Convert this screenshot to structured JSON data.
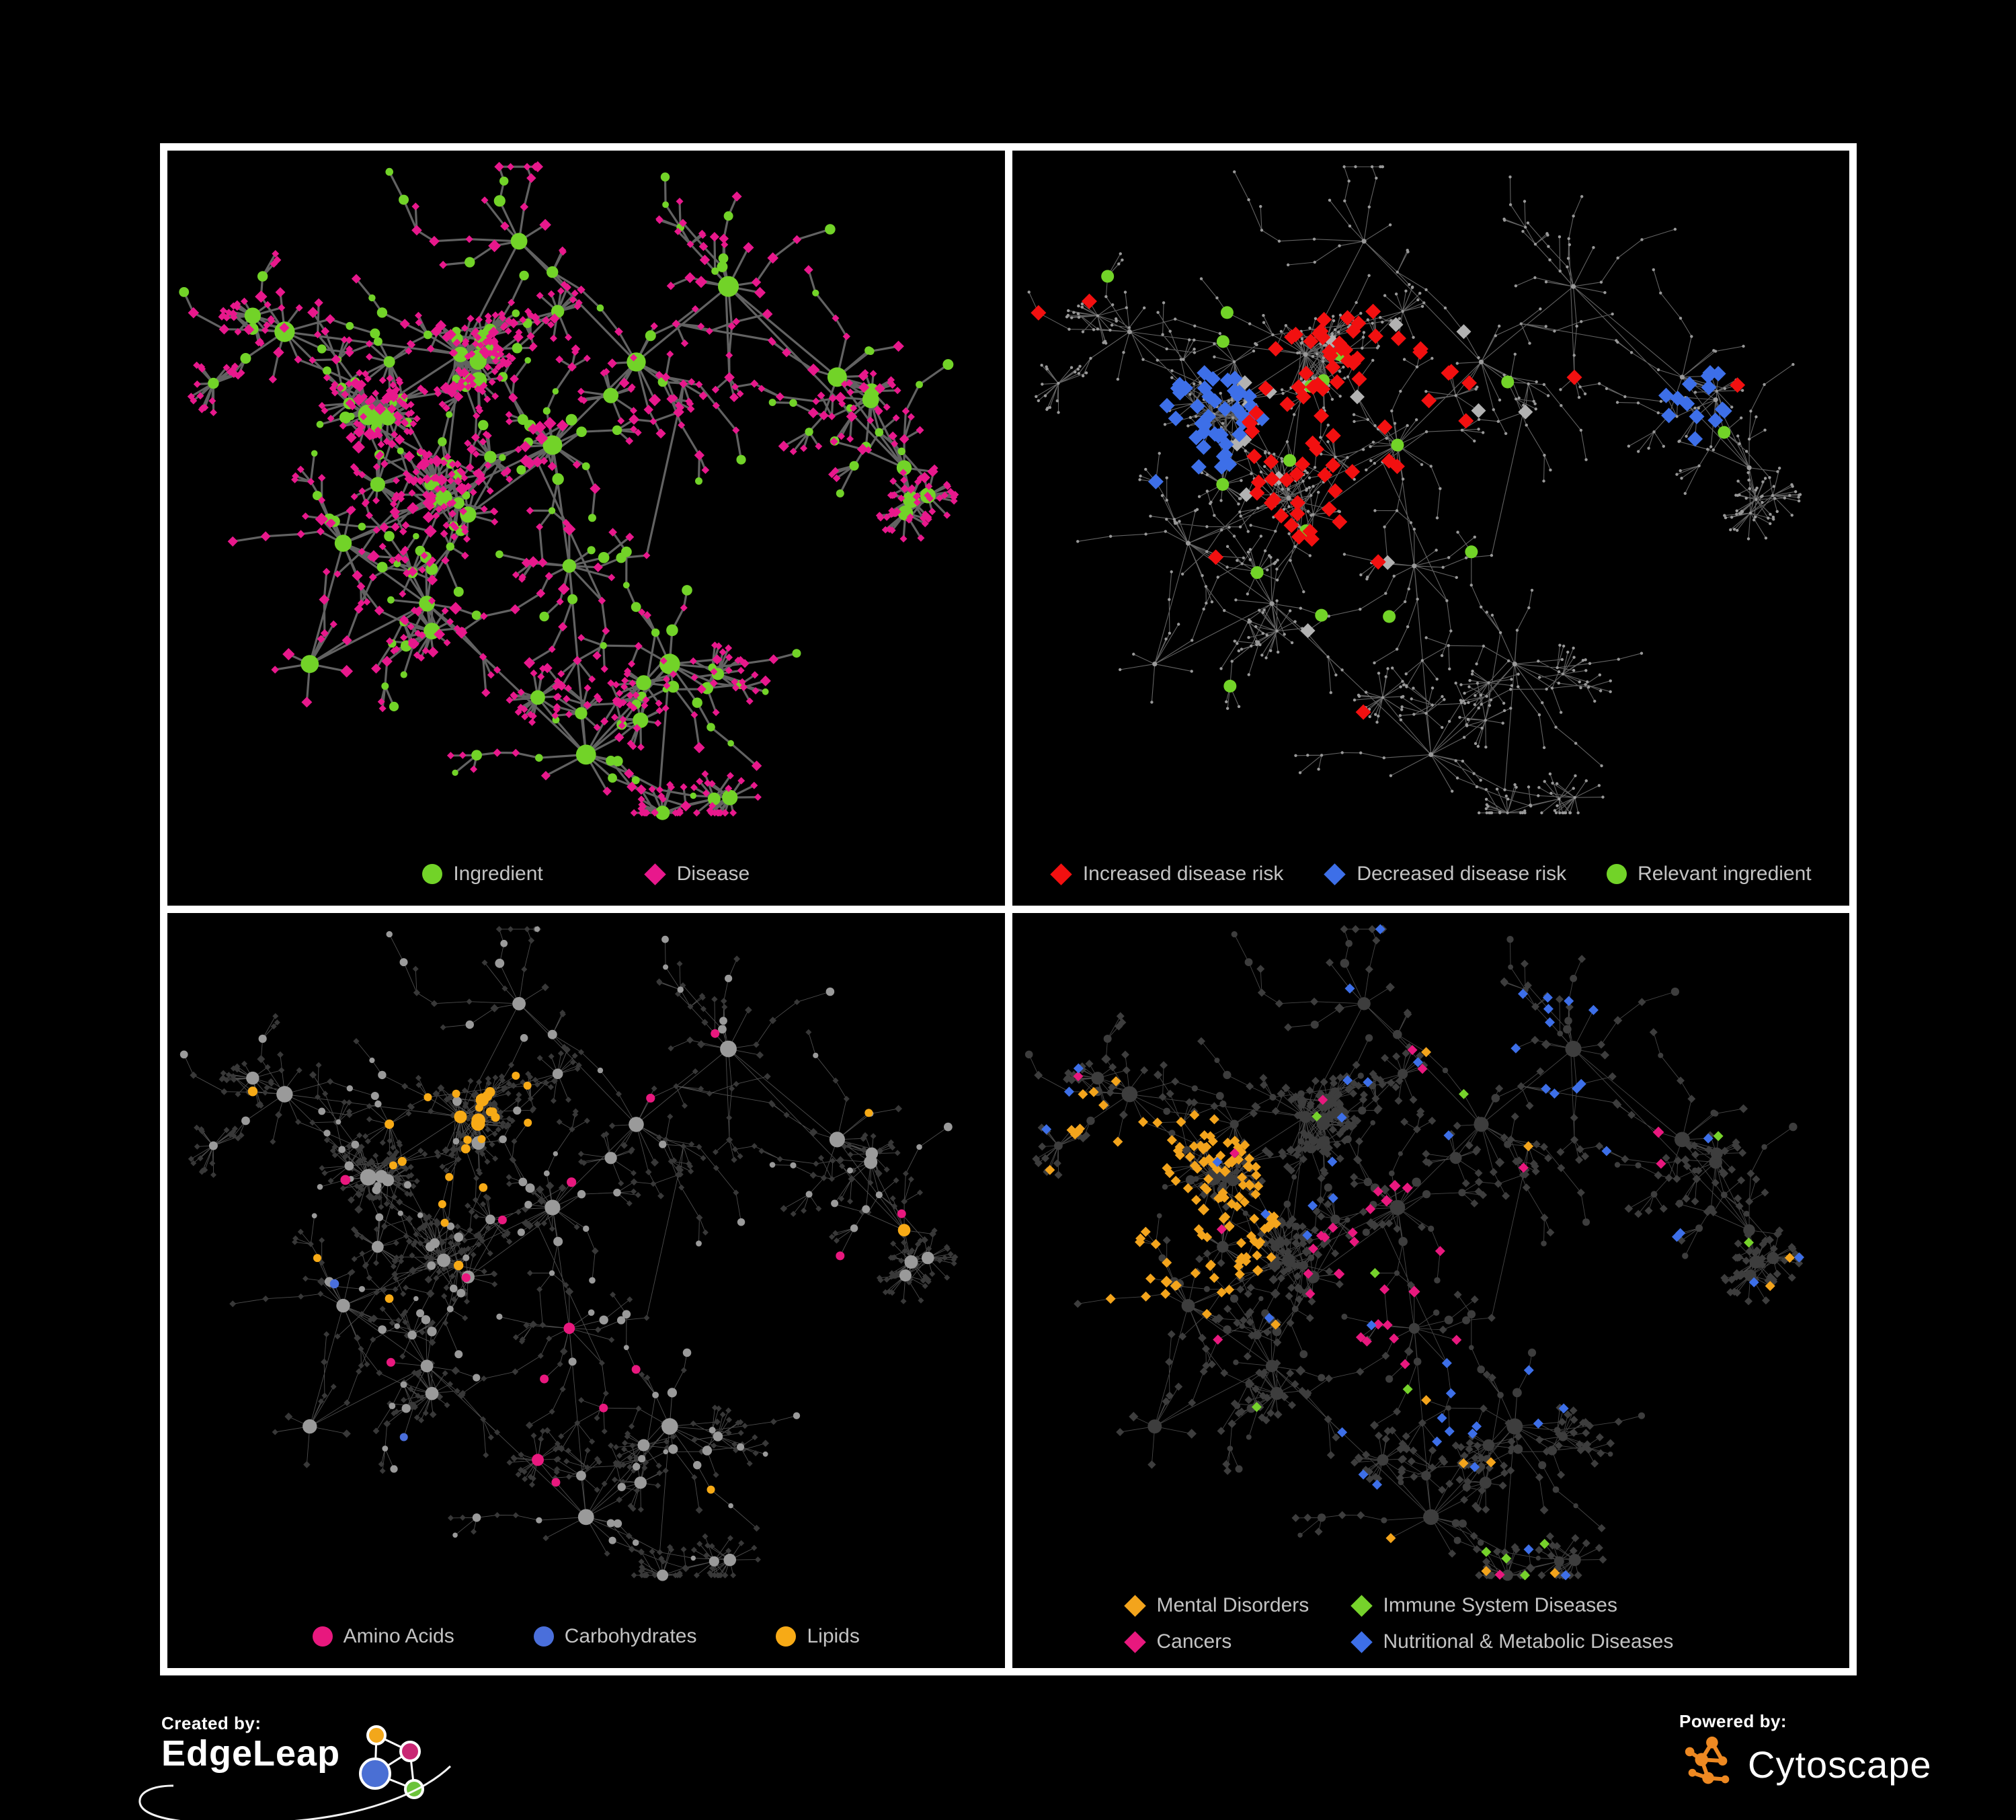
{
  "figure": {
    "background": "#000000",
    "frame_color": "#ffffff"
  },
  "panels": [
    {
      "id": "ingredient-disease",
      "legend": [
        {
          "shape": "circle",
          "color": "#72D328",
          "label": "Ingredient"
        },
        {
          "shape": "diamond",
          "color": "#E8188C",
          "label": "Disease"
        }
      ]
    },
    {
      "id": "disease-risk",
      "legend": [
        {
          "shape": "diamond",
          "color": "#F21010",
          "label": "Increased disease risk"
        },
        {
          "shape": "diamond",
          "color": "#3D6FE8",
          "label": "Decreased disease risk"
        },
        {
          "shape": "circle",
          "color": "#72D328",
          "label": "Relevant ingredient"
        }
      ]
    },
    {
      "id": "nutrient-classes",
      "legend": [
        {
          "shape": "circle",
          "color": "#E8187E",
          "label": "Amino Acids"
        },
        {
          "shape": "circle",
          "color": "#4A6FDB",
          "label": "Carbohydrates"
        },
        {
          "shape": "circle",
          "color": "#F7AA16",
          "label": "Lipids"
        }
      ]
    },
    {
      "id": "disease-classes",
      "legend": [
        {
          "shape": "diamond",
          "color": "#F3A41C",
          "label": "Mental Disorders"
        },
        {
          "shape": "diamond",
          "color": "#76D22B",
          "label": "Immune System Diseases"
        },
        {
          "shape": "diamond",
          "color": "#E8187E",
          "label": "Cancers"
        },
        {
          "shape": "diamond",
          "color": "#3D6FE8",
          "label": "Nutritional & Metabolic Diseases"
        }
      ]
    }
  ],
  "footer": {
    "created_by": "Created by:",
    "brand_left": "EdgeLeap",
    "powered_by": "Powered by:",
    "brand_right": "Cytoscape",
    "edgeleap_colors": {
      "orange": "#F2A71B",
      "magenta": "#C92874",
      "blue": "#4A6FD4",
      "green": "#6CC33B"
    },
    "cytoscape_color": "#EE8922"
  },
  "network": {
    "seed": 12345,
    "palette": {
      "edge_thick": "#6A6A6A",
      "edge_thin": "#7A7A7A",
      "edge_light": "#8C8C8C",
      "tiny_node": "#999999",
      "gray_node": "#9A9A9A",
      "dark_node": "#3D3D3D",
      "dark_diamond": "#383838",
      "silver": "#B2B2B2"
    }
  }
}
